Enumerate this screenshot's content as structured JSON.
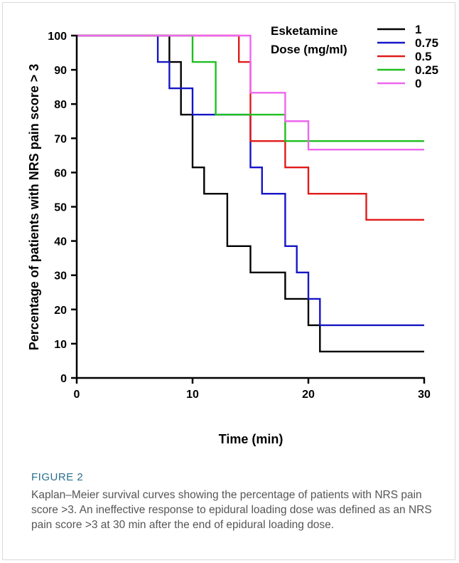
{
  "figure": {
    "label": "FIGURE 2",
    "caption": "Kaplan–Meier survival curves showing the percentage of patients with NRS pain score >3. An ineffective response to epidural loading dose was defined as an NRS pain score >3 at 30 min after the end of epidural loading dose."
  },
  "chart_data": {
    "type": "line",
    "step": true,
    "xlabel": "Time (min)",
    "ylabel": "Percentage of patients with NRS pain score > 3",
    "xlim": [
      0,
      30
    ],
    "ylim": [
      0,
      100
    ],
    "xticks": [
      0,
      10,
      20,
      30
    ],
    "yticks": [
      0,
      10,
      20,
      30,
      40,
      50,
      60,
      70,
      80,
      90,
      100
    ],
    "grid": false,
    "legend_title": [
      "Esketamine",
      "Dose (mg/ml)"
    ],
    "legend_position": "top-right",
    "series": [
      {
        "name": "1",
        "color": "#000000",
        "x": [
          0,
          8,
          9,
          10,
          11,
          13,
          15,
          18,
          20,
          21,
          30
        ],
        "y": [
          100,
          92.3,
          76.9,
          61.5,
          53.8,
          38.5,
          30.8,
          23.1,
          15.4,
          7.7,
          7.7
        ]
      },
      {
        "name": "0.75",
        "color": "#1515c8",
        "x": [
          0,
          7,
          8,
          9,
          10,
          15,
          16,
          18,
          19,
          20,
          21,
          30
        ],
        "y": [
          100,
          92.3,
          84.6,
          84.6,
          76.9,
          61.5,
          53.8,
          38.5,
          30.8,
          23.1,
          15.4,
          15.4
        ]
      },
      {
        "name": "0.5",
        "color": "#e01b1b",
        "x": [
          0,
          14,
          15,
          18,
          20,
          25,
          30
        ],
        "y": [
          100,
          92.3,
          69.2,
          61.5,
          53.8,
          46.2,
          46.2
        ]
      },
      {
        "name": "0.25",
        "color": "#1fbf1f",
        "x": [
          0,
          10,
          12,
          18,
          30
        ],
        "y": [
          100,
          92.3,
          76.9,
          69.2,
          69.2
        ]
      },
      {
        "name": "0",
        "color": "#ee66ee",
        "x": [
          0,
          15,
          18,
          20,
          30
        ],
        "y": [
          100,
          83.3,
          75.0,
          66.7,
          66.7
        ]
      }
    ]
  }
}
